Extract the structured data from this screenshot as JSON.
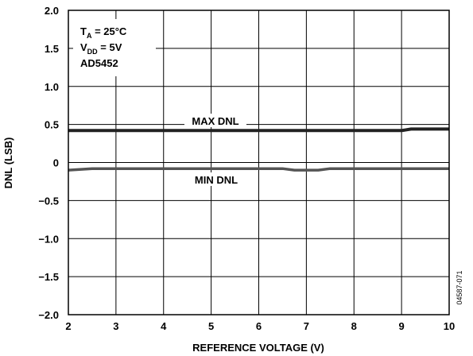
{
  "chart_data": {
    "type": "line",
    "xlabel": "REFERENCE VOLTAGE (V)",
    "ylabel": "DNL (LSB)",
    "xlim": [
      2,
      10
    ],
    "ylim": [
      -2.0,
      2.0
    ],
    "x_ticks": [
      2,
      3,
      4,
      5,
      6,
      7,
      8,
      9,
      10
    ],
    "x_tick_labels": [
      "2",
      "3",
      "4",
      "5",
      "6",
      "7",
      "8",
      "9",
      "10"
    ],
    "y_ticks": [
      2.0,
      1.5,
      1.0,
      0.5,
      0,
      -0.5,
      -1.0,
      -1.5,
      -2.0
    ],
    "y_tick_labels": [
      "2.0",
      "1.5",
      "1.0",
      "0.5",
      "0",
      "−0.5",
      "−1.0",
      "−1.5",
      "−2.0"
    ],
    "grid": true,
    "series": [
      {
        "name": "MAX DNL",
        "color": "#222222",
        "x": [
          2,
          3,
          4,
          5,
          6,
          7,
          8,
          9,
          9.2,
          10
        ],
        "y": [
          0.42,
          0.42,
          0.42,
          0.42,
          0.42,
          0.42,
          0.42,
          0.42,
          0.44,
          0.44
        ]
      },
      {
        "name": "MIN DNL",
        "color": "#555555",
        "x": [
          2,
          2.5,
          3,
          4,
          5,
          6,
          6.5,
          6.75,
          7.25,
          7.5,
          8,
          9,
          10
        ],
        "y": [
          -0.1,
          -0.08,
          -0.08,
          -0.08,
          -0.08,
          -0.08,
          -0.08,
          -0.1,
          -0.1,
          -0.08,
          -0.08,
          -0.08,
          -0.08
        ]
      }
    ],
    "conditions": {
      "ta_main": "T",
      "ta_sub": "A",
      "ta_rest": " = 25°C",
      "vdd_main": "V",
      "vdd_sub": "DD",
      "vdd_rest": " = 5V",
      "part": "AD5452"
    },
    "figure_id": "04587-071"
  }
}
